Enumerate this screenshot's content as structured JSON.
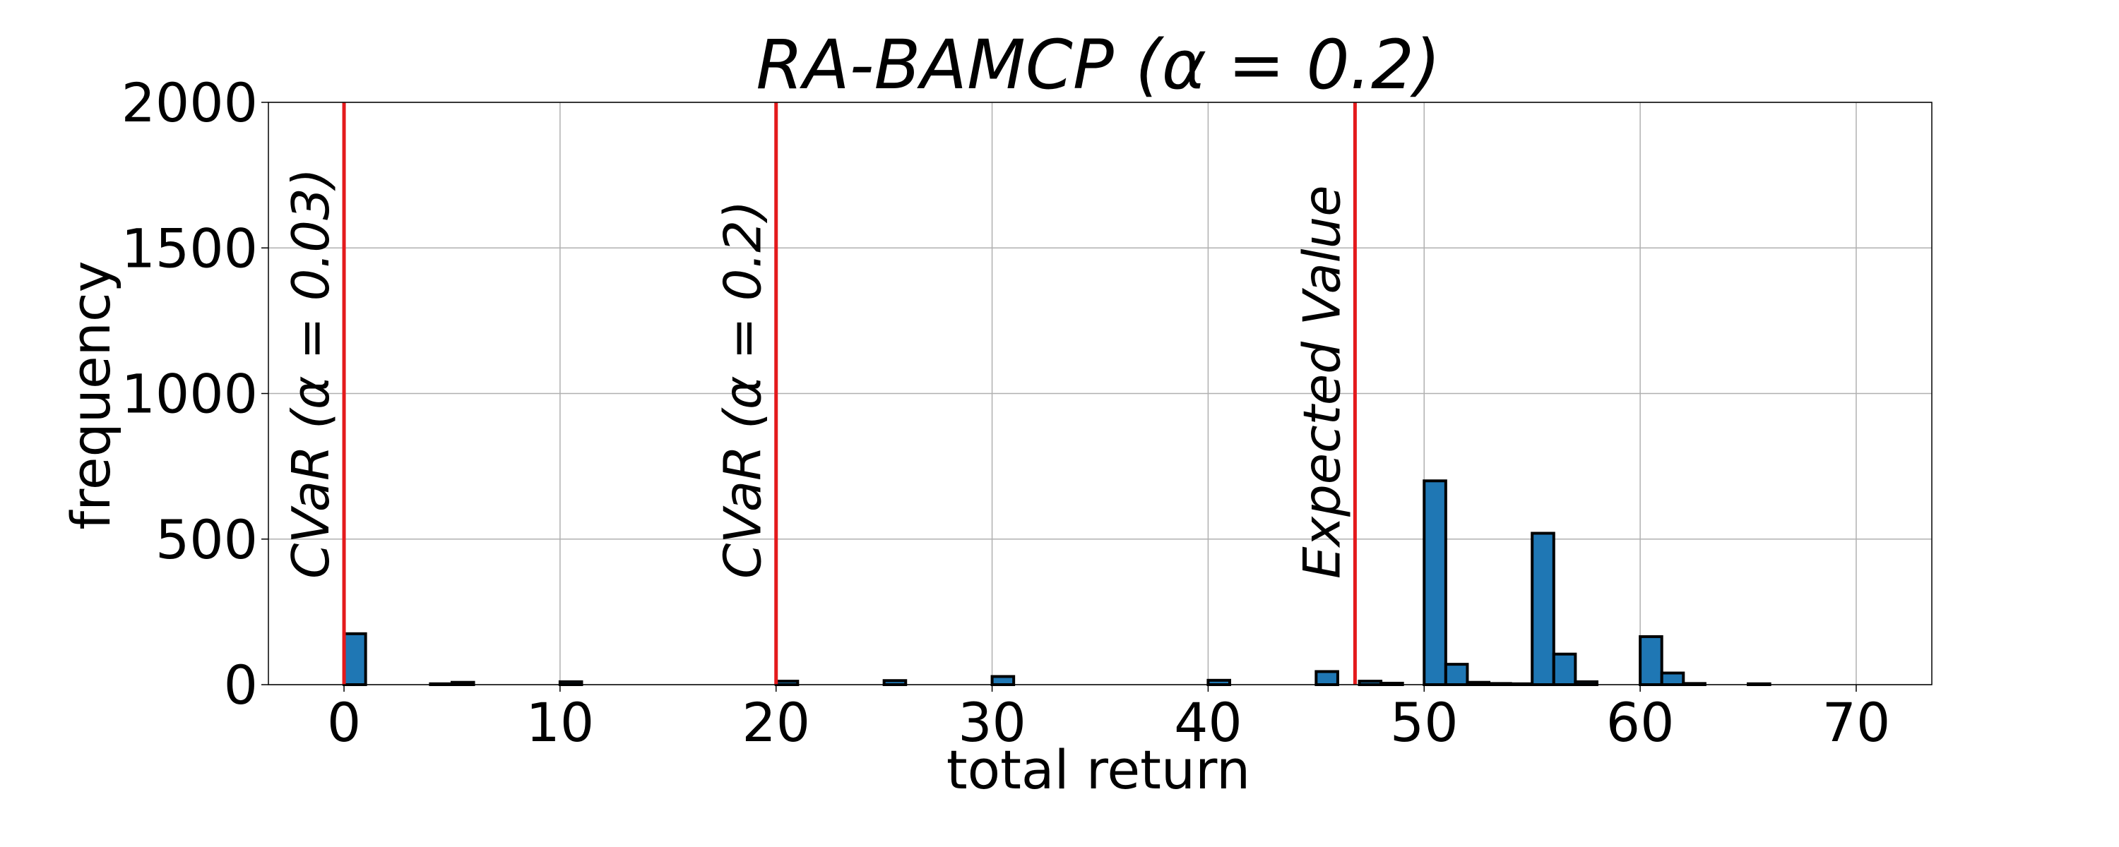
{
  "chart_data": {
    "type": "bar",
    "title": "RA-BAMCP (α = 0.2)",
    "xlabel": "total return",
    "ylabel": "frequency",
    "xlim": [
      -3.5,
      73.5
    ],
    "ylim": [
      0,
      2000
    ],
    "x_ticks": [
      "0",
      "10",
      "20",
      "30",
      "40",
      "50",
      "60",
      "70"
    ],
    "y_ticks": [
      "0",
      "500",
      "1000",
      "1500",
      "2000"
    ],
    "grid": true,
    "bin_width": 1,
    "bar_color": "#1f77b4",
    "bins": [
      {
        "x": 0,
        "value": 175
      },
      {
        "x": 4,
        "value": 3
      },
      {
        "x": 5,
        "value": 8
      },
      {
        "x": 10,
        "value": 10
      },
      {
        "x": 20,
        "value": 12
      },
      {
        "x": 25,
        "value": 14
      },
      {
        "x": 30,
        "value": 28
      },
      {
        "x": 40,
        "value": 15
      },
      {
        "x": 45,
        "value": 45
      },
      {
        "x": 47,
        "value": 12
      },
      {
        "x": 48,
        "value": 5
      },
      {
        "x": 50,
        "value": 700
      },
      {
        "x": 51,
        "value": 70
      },
      {
        "x": 52,
        "value": 8
      },
      {
        "x": 53,
        "value": 4
      },
      {
        "x": 54,
        "value": 3
      },
      {
        "x": 55,
        "value": 520
      },
      {
        "x": 56,
        "value": 105
      },
      {
        "x": 57,
        "value": 10
      },
      {
        "x": 60,
        "value": 165
      },
      {
        "x": 61,
        "value": 40
      },
      {
        "x": 62,
        "value": 4
      },
      {
        "x": 65,
        "value": 3
      }
    ],
    "vlines": [
      {
        "x": 0,
        "label": "CVaR (α = 0.03)",
        "color": "#e41a1c"
      },
      {
        "x": 20,
        "label": "CVaR (α = 0.2)",
        "color": "#e41a1c"
      },
      {
        "x": 46.8,
        "label": "Expected Value",
        "color": "#e41a1c"
      }
    ]
  }
}
